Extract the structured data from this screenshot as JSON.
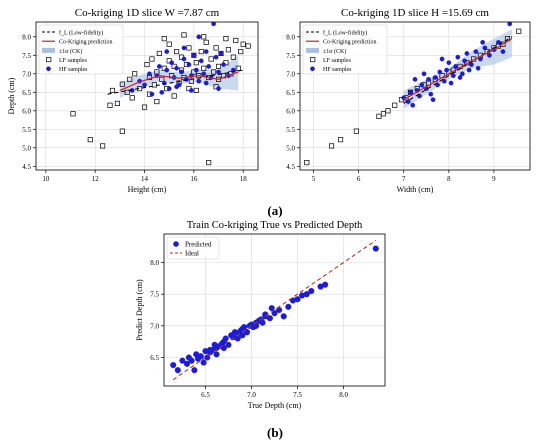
{
  "panel_labels": {
    "a": "(a)",
    "b": "(b)"
  },
  "colors": {
    "hf": "#1c1cd8",
    "lf_edge": "#000000",
    "ck_line": "#cc2222",
    "band": "#a9c0e6",
    "ideal": "#b03a1a",
    "grid": "#d9d9d9"
  },
  "legend_top": {
    "lf_line": "f_L (Low-fidelity)",
    "ck": "Co-Kriging prediction",
    "band": "±1σ (CK)",
    "lf_samples": "LF samples",
    "hf_samples": "HF samples"
  },
  "chart_data": [
    {
      "type": "scatter",
      "title": "Co-kriging 1D slice W =7.87 cm",
      "xlabel": "Height (cm)",
      "ylabel": "Depth (cm)",
      "xlim": [
        9.6,
        18.6
      ],
      "ylim": [
        4.4,
        8.4
      ],
      "xticks": [
        "10",
        "12",
        "14",
        "16",
        "18"
      ],
      "yticks": [
        "4.5",
        "5.0",
        "5.5",
        "6.0",
        "6.5",
        "7.0",
        "7.5",
        "8.0"
      ],
      "grid": true,
      "legend_position": "top-left",
      "series": [
        {
          "name": "f_L (Low-fidelity)",
          "kind": "dashed-line",
          "x": [
            12.5,
            18.0
          ],
          "y": [
            6.45,
            7.1
          ]
        },
        {
          "name": "Co-Kriging prediction",
          "kind": "line",
          "x": [
            13.0,
            13.8,
            14.6,
            15.4,
            16.2,
            17.0,
            17.8
          ],
          "y": [
            6.55,
            6.78,
            6.95,
            6.88,
            6.95,
            6.85,
            7.05
          ]
        },
        {
          "name": "±1σ (CK)",
          "kind": "band",
          "x": [
            13.0,
            13.8,
            14.6,
            15.4,
            16.2,
            17.0,
            17.8
          ],
          "y_low": [
            6.35,
            6.6,
            6.8,
            6.72,
            6.78,
            6.6,
            6.55
          ],
          "y_high": [
            6.75,
            6.96,
            7.1,
            7.04,
            7.12,
            7.1,
            7.5
          ]
        },
        {
          "name": "LF samples",
          "kind": "hollow-square",
          "x": [
            11.1,
            11.8,
            12.3,
            12.6,
            12.7,
            12.9,
            13.1,
            13.1,
            13.3,
            13.4,
            13.5,
            13.6,
            13.8,
            14.0,
            14.1,
            14.2,
            14.2,
            14.3,
            14.4,
            14.5,
            14.6,
            14.7,
            14.8,
            14.9,
            15.0,
            15.0,
            15.1,
            15.2,
            15.3,
            15.4,
            15.5,
            15.5,
            15.6,
            15.7,
            15.8,
            15.9,
            16.0,
            16.0,
            16.1,
            16.2,
            16.3,
            16.4,
            16.5,
            16.6,
            16.7,
            16.8,
            16.9,
            17.0,
            17.0,
            17.1,
            17.2,
            17.3,
            17.4,
            17.5,
            17.6,
            17.7,
            17.8,
            17.9,
            18.0,
            18.2,
            14.5,
            14.8,
            15.2,
            15.6,
            16.1,
            16.4,
            16.9,
            17.3,
            15.8,
            16.6
          ],
          "y": [
            5.92,
            5.22,
            5.05,
            6.15,
            6.55,
            6.2,
            5.45,
            6.72,
            6.5,
            6.85,
            6.35,
            7.0,
            6.6,
            6.1,
            7.25,
            6.9,
            6.45,
            7.4,
            6.7,
            7.05,
            7.55,
            6.85,
            7.15,
            6.6,
            7.35,
            7.8,
            6.95,
            7.2,
            7.6,
            6.75,
            7.1,
            7.45,
            6.9,
            7.25,
            7.7,
            6.8,
            7.05,
            7.5,
            7.3,
            6.95,
            7.6,
            7.15,
            7.85,
            6.9,
            7.4,
            7.05,
            7.7,
            6.85,
            7.2,
            7.55,
            6.95,
            7.3,
            7.65,
            7.0,
            7.45,
            7.9,
            7.15,
            7.6,
            7.8,
            7.75,
            6.25,
            7.95,
            6.4,
            8.05,
            6.55,
            8.0,
            6.65,
            7.95,
            6.6,
            4.6
          ]
        },
        {
          "name": "HF samples",
          "kind": "dot",
          "x": [
            13.5,
            13.8,
            14.0,
            14.2,
            14.3,
            14.5,
            14.6,
            14.8,
            14.9,
            15.0,
            15.1,
            15.2,
            15.3,
            15.4,
            15.5,
            15.6,
            15.7,
            15.8,
            15.9,
            16.0,
            16.1,
            16.2,
            16.3,
            16.4,
            16.5,
            16.6,
            16.7,
            16.8,
            16.9,
            17.0,
            17.1,
            17.2,
            17.4,
            17.6,
            14.7,
            15.3,
            15.9,
            16.5,
            17.0,
            16.2,
            15.6,
            14.9
          ],
          "y": [
            6.55,
            6.8,
            6.7,
            7.0,
            6.45,
            6.95,
            7.2,
            6.75,
            7.1,
            6.6,
            7.3,
            6.9,
            7.15,
            6.7,
            7.05,
            7.4,
            6.85,
            7.25,
            6.95,
            7.5,
            7.1,
            6.8,
            7.35,
            7.0,
            7.6,
            7.2,
            6.9,
            8.35,
            7.45,
            7.05,
            7.55,
            7.25,
            6.95,
            7.1,
            6.5,
            6.65,
            6.55,
            6.75,
            6.6,
            8.0,
            7.7,
            7.6
          ]
        }
      ]
    },
    {
      "type": "scatter",
      "title": "Co-kriging 1D slice H =15.69 cm",
      "xlabel": "Width (cm)",
      "ylabel": "",
      "xlim": [
        4.7,
        9.8
      ],
      "ylim": [
        4.4,
        8.4
      ],
      "xticks": [
        "5",
        "6",
        "7",
        "8",
        "9"
      ],
      "yticks": [
        "4.5",
        "5.0",
        "5.5",
        "6.0",
        "6.5",
        "7.0",
        "7.5",
        "8.0"
      ],
      "grid": true,
      "legend_position": "top-left",
      "series": [
        {
          "name": "f_L (Low-fidelity)",
          "kind": "dashed-line",
          "x": [
            7.0,
            9.4
          ],
          "y": [
            6.2,
            8.0
          ]
        },
        {
          "name": "Co-Kriging prediction",
          "kind": "line",
          "x": [
            7.0,
            7.5,
            8.0,
            8.5,
            9.0,
            9.4
          ],
          "y": [
            6.3,
            6.65,
            7.0,
            7.35,
            7.65,
            7.95
          ]
        },
        {
          "name": "±1σ (CK)",
          "kind": "band",
          "x": [
            7.0,
            7.5,
            8.0,
            8.5,
            9.0,
            9.4
          ],
          "y_low": [
            6.05,
            6.45,
            6.85,
            7.15,
            7.25,
            7.45
          ],
          "y_high": [
            6.55,
            6.85,
            7.15,
            7.6,
            7.95,
            8.2
          ]
        },
        {
          "name": "LF samples",
          "kind": "hollow-square",
          "x": [
            4.85,
            5.4,
            5.6,
            5.95,
            6.45,
            6.55,
            6.65,
            6.8,
            6.95,
            7.05,
            7.15,
            7.3,
            7.45,
            7.55,
            7.7,
            7.85,
            8.0,
            8.1,
            8.25,
            8.4,
            8.55,
            8.7,
            8.85,
            9.0,
            9.1,
            9.2,
            9.3,
            9.55
          ],
          "y": [
            4.6,
            5.05,
            5.22,
            5.45,
            5.85,
            5.92,
            6.0,
            6.15,
            6.3,
            6.35,
            6.5,
            6.6,
            6.7,
            6.75,
            6.85,
            6.95,
            7.05,
            7.1,
            7.2,
            7.3,
            7.4,
            7.5,
            7.6,
            7.7,
            7.75,
            7.8,
            7.95,
            8.15
          ]
        },
        {
          "name": "HF samples",
          "kind": "dot",
          "x": [
            7.0,
            7.1,
            7.15,
            7.2,
            7.3,
            7.35,
            7.4,
            7.5,
            7.55,
            7.6,
            7.7,
            7.75,
            7.8,
            7.9,
            7.95,
            8.0,
            8.1,
            8.15,
            8.2,
            8.3,
            8.35,
            8.4,
            8.5,
            8.6,
            8.7,
            8.8,
            8.9,
            9.0,
            9.1,
            9.2,
            9.35,
            7.25,
            7.65,
            8.05,
            8.45,
            8.75,
            7.45,
            7.85,
            8.25,
            8.65
          ],
          "y": [
            6.35,
            6.25,
            6.5,
            6.15,
            6.55,
            6.4,
            6.7,
            6.6,
            6.85,
            6.45,
            6.9,
            6.7,
            7.05,
            6.8,
            7.1,
            7.3,
            6.95,
            7.2,
            7.45,
            7.0,
            7.35,
            7.55,
            7.25,
            7.6,
            7.4,
            7.7,
            7.5,
            7.65,
            7.85,
            7.6,
            8.35,
            6.85,
            6.3,
            6.75,
            7.1,
            7.85,
            7.0,
            7.4,
            6.9,
            7.15
          ]
        }
      ]
    },
    {
      "type": "scatter",
      "title": "Train Co-kriging True vs Predicted Depth",
      "xlabel": "True Depth (cm)",
      "ylabel": "Predict Depth (cm)",
      "xlim": [
        6.05,
        8.45
      ],
      "ylim": [
        6.05,
        8.45
      ],
      "xticks": [
        "6.5",
        "7.0",
        "7.5",
        "8.0"
      ],
      "yticks": [
        "6.5",
        "7.0",
        "7.5",
        "8.0"
      ],
      "grid": true,
      "legend_position": "top-left",
      "legend": {
        "predicted": "Predicted",
        "ideal": "Ideal"
      },
      "series": [
        {
          "name": "Predicted",
          "kind": "dot",
          "x": [
            6.15,
            6.2,
            6.25,
            6.3,
            6.32,
            6.35,
            6.4,
            6.42,
            6.45,
            6.5,
            6.52,
            6.55,
            6.58,
            6.6,
            6.62,
            6.65,
            6.68,
            6.7,
            6.72,
            6.75,
            6.78,
            6.8,
            6.82,
            6.85,
            6.88,
            6.9,
            6.92,
            6.95,
            6.98,
            7.0,
            7.02,
            7.05,
            7.08,
            7.1,
            7.12,
            7.15,
            7.2,
            7.25,
            7.3,
            7.35,
            7.4,
            7.5,
            7.55,
            7.6,
            7.65,
            7.75,
            7.8,
            8.35,
            6.48,
            6.62,
            6.7,
            6.85,
            6.95,
            7.05,
            7.22,
            7.45,
            6.38,
            6.55,
            6.9,
            7.15
          ],
          "y": [
            6.38,
            6.3,
            6.45,
            6.4,
            6.5,
            6.45,
            6.55,
            6.48,
            6.52,
            6.6,
            6.5,
            6.58,
            6.62,
            6.7,
            6.65,
            6.68,
            6.72,
            6.75,
            6.8,
            6.7,
            6.85,
            6.82,
            6.9,
            6.88,
            6.92,
            6.95,
            6.98,
            6.9,
            7.0,
            7.02,
            6.98,
            7.05,
            7.08,
            7.1,
            7.05,
            7.15,
            7.12,
            7.2,
            7.25,
            7.15,
            7.3,
            7.42,
            7.48,
            7.5,
            7.55,
            7.62,
            7.65,
            8.22,
            6.42,
            6.55,
            6.65,
            6.8,
            6.9,
            7.0,
            7.28,
            7.4,
            6.3,
            6.62,
            6.85,
            7.18
          ]
        },
        {
          "name": "Ideal",
          "kind": "dashed-line",
          "x": [
            6.15,
            8.35
          ],
          "y": [
            6.15,
            8.35
          ]
        }
      ]
    }
  ]
}
